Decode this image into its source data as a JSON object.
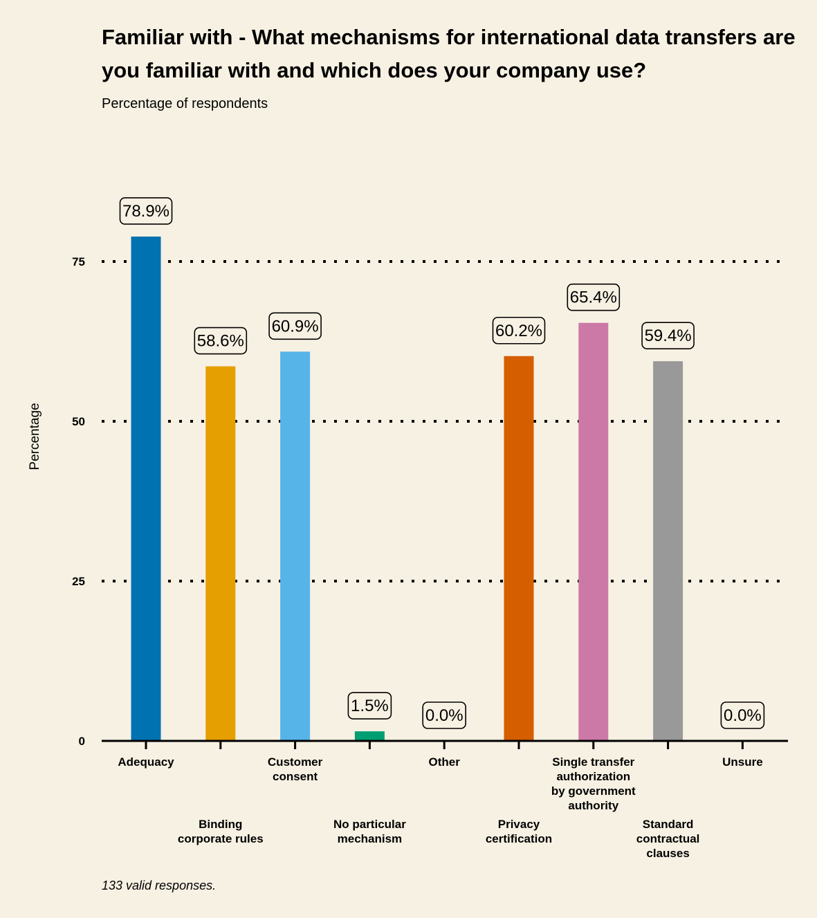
{
  "chart_data": {
    "type": "bar",
    "title": "Familiar with - What mechanisms for international data transfers are you familiar with and which does your company use?",
    "subtitle": "Percentage of respondents",
    "ylabel": "Percentage",
    "xlabel": "",
    "ylim": [
      0,
      88
    ],
    "yticks": [
      0,
      25,
      50,
      75
    ],
    "grid": "dotted horizontal at 25, 50, 75",
    "legend": "none",
    "categories": [
      "Adequacy",
      "Binding corporate rules",
      "Customer consent",
      "No particular mechanism",
      "Other",
      "Privacy certification",
      "Single transfer authorization by government authority",
      "Standard contractual clauses",
      "Unsure"
    ],
    "category_label_lines": [
      [
        "Adequacy"
      ],
      [
        "Binding",
        "corporate rules"
      ],
      [
        "Customer",
        "consent"
      ],
      [
        "No particular",
        "mechanism"
      ],
      [
        "Other"
      ],
      [
        "Privacy",
        "certification"
      ],
      [
        "Single transfer",
        "authorization",
        "by government",
        "authority"
      ],
      [
        "Standard",
        "contractual",
        "clauses"
      ],
      [
        "Unsure"
      ]
    ],
    "values": [
      78.9,
      58.6,
      60.9,
      1.5,
      0.0,
      60.2,
      65.4,
      59.4,
      0.0
    ],
    "data_labels": [
      "78.9%",
      "58.6%",
      "60.9%",
      "1.5%",
      "0.0%",
      "60.2%",
      "65.4%",
      "59.4%",
      "0.0%"
    ],
    "colors": [
      "#0072b2",
      "#e69f00",
      "#56b4e9",
      "#009e73",
      "#f0e442",
      "#d55e00",
      "#cc79a7",
      "#999999",
      "#000000"
    ],
    "caption": "133 valid responses."
  }
}
